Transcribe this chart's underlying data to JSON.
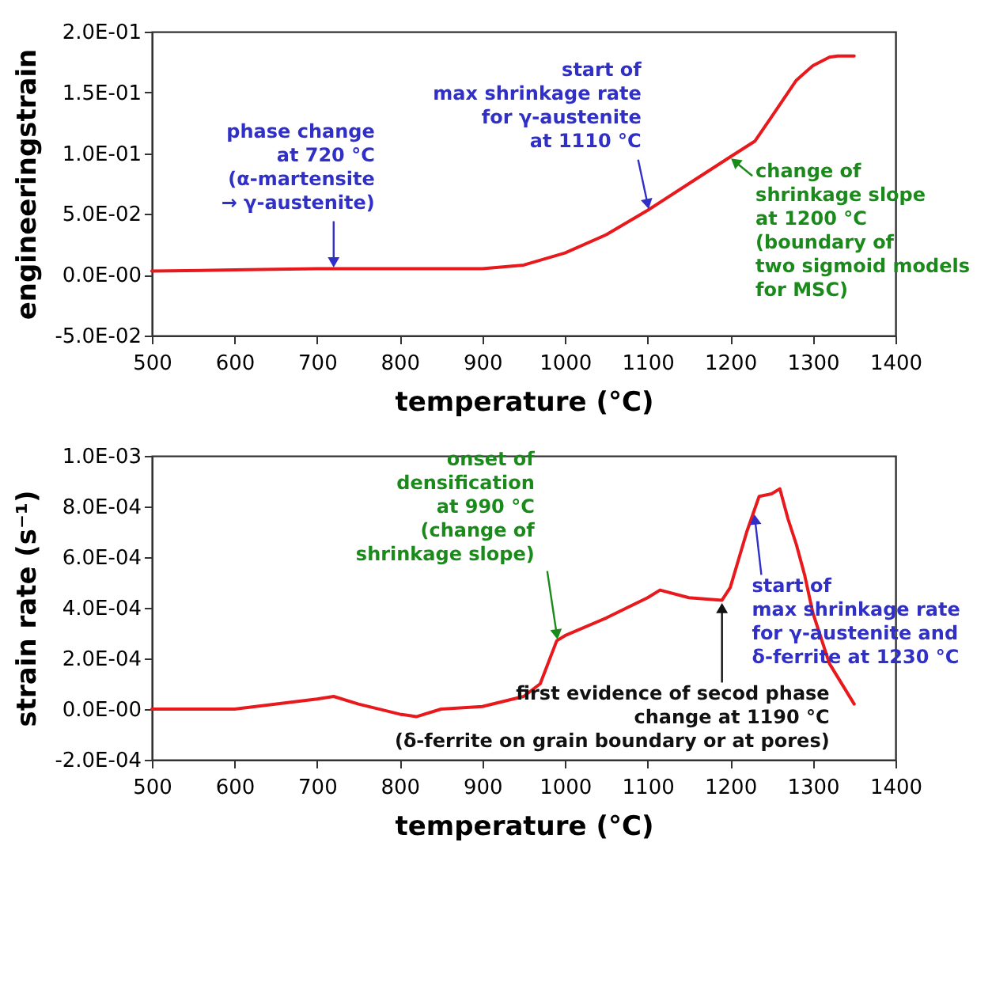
{
  "chart_data": [
    {
      "type": "line",
      "xlabel": "temperature (°C)",
      "ylabel": "engineeringstrain",
      "x": [
        500,
        600,
        700,
        800,
        900,
        950,
        1000,
        1050,
        1100,
        1150,
        1200,
        1230,
        1250,
        1280,
        1300,
        1320,
        1330,
        1350
      ],
      "series": [
        {
          "color": "#e8191c",
          "values": [
            0.003,
            0.004,
            0.005,
            0.005,
            0.005,
            0.008,
            0.018,
            0.033,
            0.053,
            0.075,
            0.097,
            0.11,
            0.13,
            0.16,
            0.172,
            0.179,
            0.18,
            0.18
          ]
        }
      ],
      "xlim": [
        500,
        1400
      ],
      "xticks": [
        500,
        600,
        700,
        800,
        900,
        1000,
        1100,
        1200,
        1300,
        1400
      ],
      "ylim": [
        -0.05,
        0.2
      ],
      "yticks": [
        {
          "value": -0.05,
          "label": "-5.0E-02"
        },
        {
          "value": 0,
          "label": "0.0E-00"
        },
        {
          "value": 0.05,
          "label": "5.0E-02"
        },
        {
          "value": 0.1,
          "label": "1.0E-01"
        },
        {
          "value": 0.15,
          "label": "1.5E-01"
        },
        {
          "value": 0.2,
          "label": "2.0E-01"
        }
      ],
      "annotations": [
        {
          "text": "phase change\nat 720 °C\n(α-martensite\n→ γ-austenite)",
          "x": 720,
          "y": 0.005
        },
        {
          "text": "start of\nmax shrinkage rate\nfor γ-austenite\nat 1110 °C",
          "x": 1100,
          "y": 0.053
        },
        {
          "text": "change of\nshrinkage slope\nat 1200 °C\n(boundary of\ntwo sigmoid models\nfor MSC)",
          "x": 1200,
          "y": 0.097
        }
      ]
    },
    {
      "type": "line",
      "xlabel": "temperature (°C)",
      "ylabel": "strain rate (s⁻¹)",
      "x": [
        500,
        600,
        700,
        720,
        750,
        800,
        820,
        850,
        900,
        950,
        970,
        990,
        1000,
        1050,
        1100,
        1115,
        1150,
        1190,
        1200,
        1220,
        1235,
        1250,
        1260,
        1270,
        1280,
        1290,
        1300,
        1320,
        1350
      ],
      "series": [
        {
          "color": "#e8191c",
          "values": [
            0.0,
            0.0,
            4e-05,
            5e-05,
            2e-05,
            -2e-05,
            -3e-05,
            0.0,
            1e-05,
            5e-05,
            0.0001,
            0.00027,
            0.00029,
            0.00036,
            0.00044,
            0.00047,
            0.00044,
            0.00043,
            0.00048,
            0.0007,
            0.00084,
            0.00085,
            0.00087,
            0.00075,
            0.00065,
            0.00053,
            0.00038,
            0.00018,
            2e-05
          ]
        }
      ],
      "xlim": [
        500,
        1400
      ],
      "xticks": [
        500,
        600,
        700,
        800,
        900,
        1000,
        1100,
        1200,
        1300,
        1400
      ],
      "ylim": [
        -0.0002,
        0.001
      ],
      "yticks": [
        {
          "value": -0.0002,
          "label": "-2.0E-04"
        },
        {
          "value": 0,
          "label": "0.0E-00"
        },
        {
          "value": 0.0002,
          "label": "2.0E-04"
        },
        {
          "value": 0.0004,
          "label": "4.0E-04"
        },
        {
          "value": 0.0006,
          "label": "6.0E-04"
        },
        {
          "value": 0.0008,
          "label": "8.0E-04"
        },
        {
          "value": 0.001,
          "label": "1.0E-03"
        }
      ],
      "annotations": [
        {
          "text": "onset of\ndensification\nat 990 °C\n(change of\nshrinkage slope)",
          "x": 990,
          "y": 0.00027
        },
        {
          "text": "start of\nmax shrinkage rate\nfor γ-austenite and\nδ-ferrite at 1230 °C",
          "x": 1230,
          "y": 0.00078
        },
        {
          "text": "first evidence of secod phase\nchange at 1190 °C\n(δ-ferrite on grain boundary or at pores)",
          "x": 1190,
          "y": 0.00043
        }
      ]
    }
  ]
}
